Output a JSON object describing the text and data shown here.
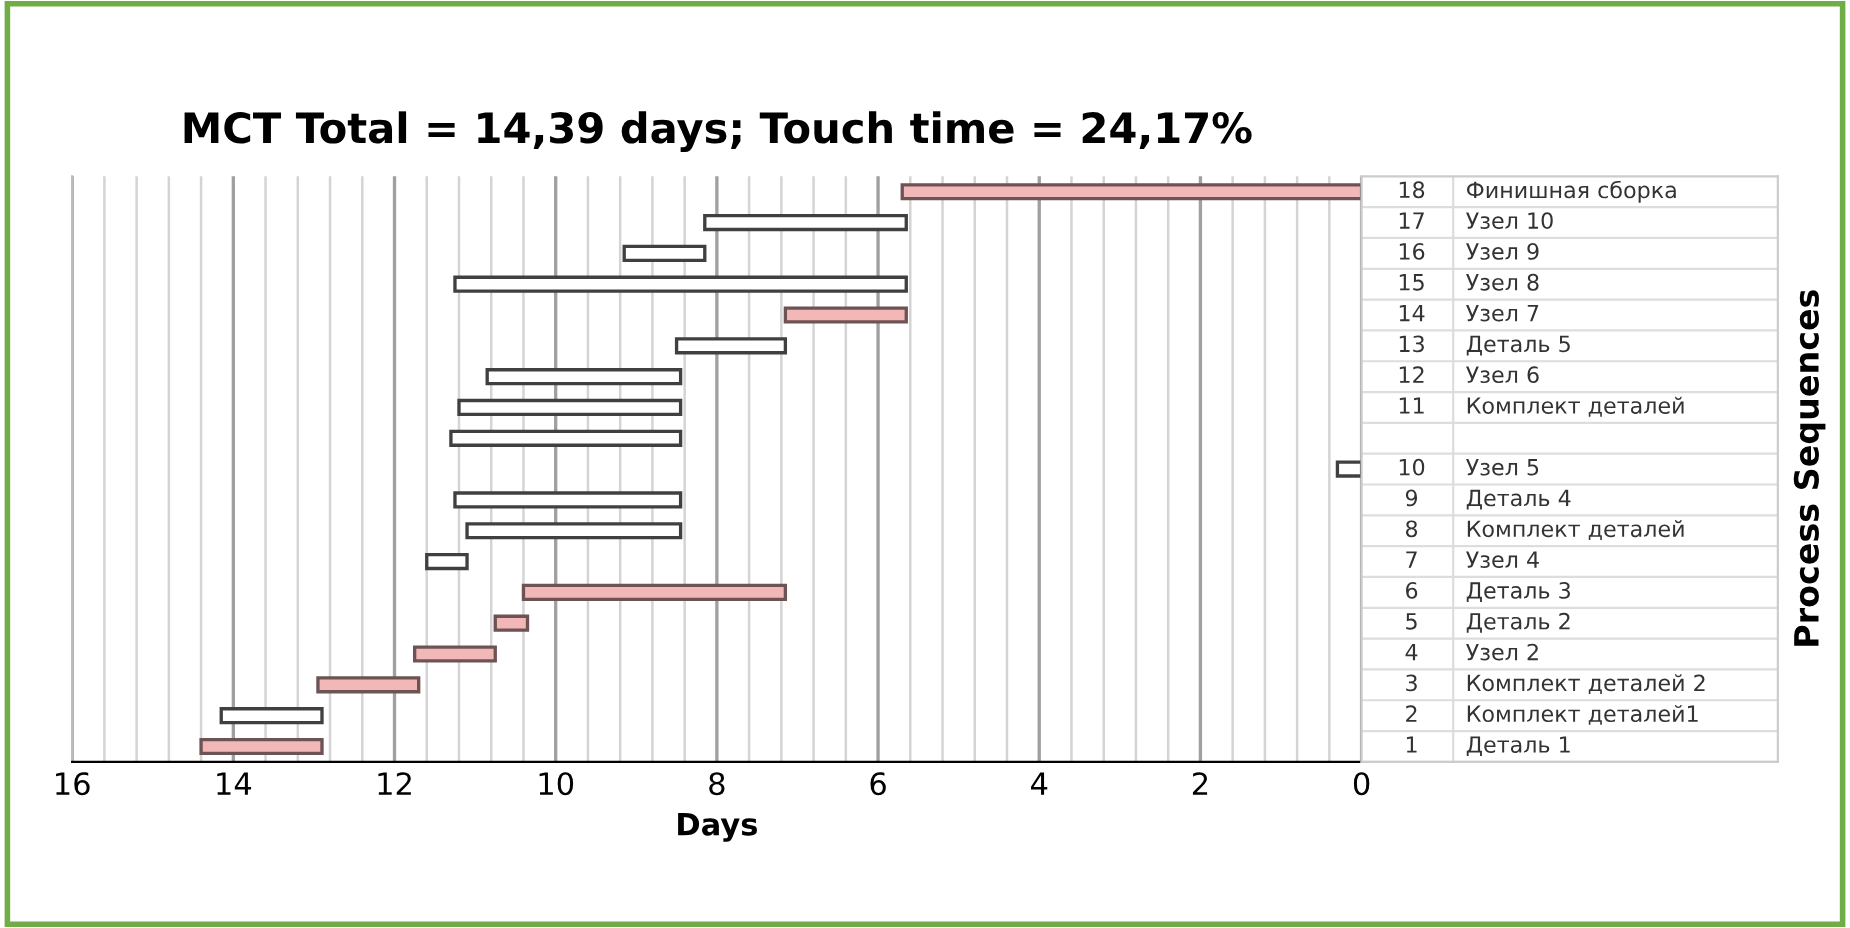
{
  "chart_data": {
    "type": "bar",
    "orientation": "horizontal",
    "title": "MCT Total = 14,39 days; Touch time = 24,17%",
    "xlabel": "Days",
    "annotations": [
      "Process Sequences"
    ],
    "categories": [
      "18 Финишная сборка",
      "17 Узел 10",
      "16 Узел 9",
      "15 Узел 8",
      "14 Узел 7",
      "13 Деталь 5",
      "12 Узел 6",
      "11 Комплект деталей",
      null,
      "10 Узел 5",
      "9 Деталь 4",
      "8 Комплект деталей",
      "7 Узел 4",
      "6 Деталь 3",
      "5 Деталь 2",
      "4 Узел 2",
      "3 Комплект деталей 2",
      "2 Комплект деталей1",
      "1 Деталь 1"
    ],
    "base": [
      0,
      5.65,
      8.15,
      5.65,
      5.65,
      7.15,
      8.45,
      8.45,
      8.45,
      0,
      8.45,
      8.45,
      11.1,
      7.15,
      10.35,
      10.75,
      11.7,
      12.9,
      12.9
    ],
    "values": [
      5.7,
      2.5,
      1.0,
      5.6,
      1.5,
      1.35,
      2.4,
      2.75,
      2.85,
      0.3,
      2.8,
      2.65,
      0.5,
      3.25,
      0.4,
      1.0,
      1.25,
      1.25,
      1.5
    ],
    "colors": [
      "#f2b8b8",
      "#ffffff",
      "#ffffff",
      "#ffffff",
      "#f2b8b8",
      "#ffffff",
      "#ffffff",
      "#ffffff",
      "#ffffff",
      "#ffffff",
      "#ffffff",
      "#ffffff",
      "#ffffff",
      "#f2b8b8",
      "#f2b8b8",
      "#f2b8b8",
      "#f2b8b8",
      "#ffffff",
      "#f2b8b8"
    ],
    "xlim": [
      16,
      0
    ],
    "xticks": [
      0,
      {
        "value": 0.4,
        "label": null
      },
      {
        "value": 0.8,
        "label": null
      },
      {
        "value": 1.2,
        "label": null
      },
      {
        "value": 1.6,
        "label": null
      },
      2,
      {
        "value": 2.4,
        "label": null
      },
      {
        "value": 2.8,
        "label": null
      },
      {
        "value": 3.2,
        "label": null
      },
      {
        "value": 3.6,
        "label": null
      },
      4,
      {
        "value": 4.4,
        "label": null
      },
      {
        "value": 4.8,
        "label": null
      },
      {
        "value": 5.2,
        "label": null
      },
      {
        "value": 5.6,
        "label": null
      },
      6,
      {
        "value": 6.4,
        "label": null
      },
      {
        "value": 6.8,
        "label": null
      },
      {
        "value": 7.2,
        "label": null
      },
      {
        "value": 7.6,
        "label": null
      },
      8,
      {
        "value": 8.4,
        "label": null
      },
      {
        "value": 8.8,
        "label": null
      },
      {
        "value": 9.2,
        "label": null
      },
      {
        "value": 9.6,
        "label": null
      },
      10,
      {
        "value": 10.4,
        "label": null
      },
      {
        "value": 10.8,
        "label": null
      },
      {
        "value": 11.2,
        "label": null
      },
      {
        "value": 11.6,
        "label": null
      },
      12,
      {
        "value": 12.4,
        "label": null
      },
      {
        "value": 12.8,
        "label": null
      },
      {
        "value": 13.2,
        "label": null
      },
      {
        "value": 13.6,
        "label": null
      },
      14,
      {
        "value": 14.4,
        "label": null
      },
      {
        "value": 14.8,
        "label": null
      },
      {
        "value": 15.2,
        "label": null
      },
      {
        "value": 15.6,
        "label": null
      },
      16
    ],
    "grid": "x"
  }
}
